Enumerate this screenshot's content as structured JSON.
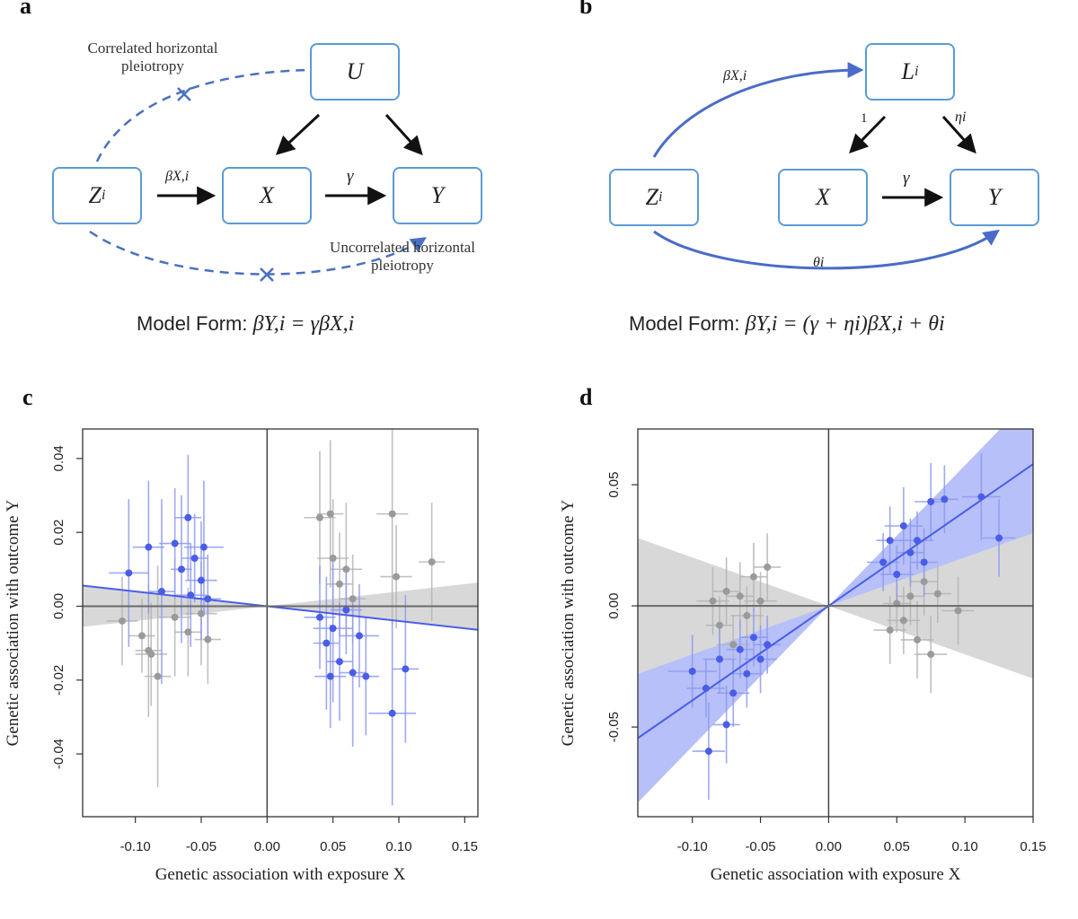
{
  "panels": {
    "a": {
      "letter": "a",
      "node_u": "U",
      "node_z": "Z",
      "node_z_sub": "i",
      "node_x": "X",
      "node_y": "Y",
      "edge_zx": "βX,i",
      "edge_xy": "γ",
      "correlated_label_1": "Correlated horizontal",
      "correlated_label_2": "pleiotropy",
      "uncorrelated_label_1": "Uncorrelated horizontal",
      "uncorrelated_label_2": "pleiotropy",
      "model_prefix": "Model Form: ",
      "model_eq": "βY,i = γβX,i"
    },
    "b": {
      "letter": "b",
      "node_l": "L",
      "node_l_sub": "i",
      "node_z": "Z",
      "node_z_sub": "i",
      "node_x": "X",
      "node_y": "Y",
      "edge_zl": "βX,i",
      "edge_lx": "1",
      "edge_ly": "ηi",
      "edge_xy": "γ",
      "edge_zy": "θi",
      "model_prefix": "Model Form: ",
      "model_eq": "βY,i = (γ + ηi)βX,i + θi"
    },
    "c": {
      "letter": "c"
    },
    "d": {
      "letter": "d"
    }
  },
  "colors": {
    "blue": "#4a5de8",
    "blue_light": "#8d9af0",
    "gray": "#9a9a9a",
    "node_border": "#5b9bd5",
    "dashed": "#4a70c0"
  },
  "chart_data": [
    {
      "type": "scatter",
      "panel": "c",
      "xlabel": "Genetic association with exposure X",
      "ylabel": "Genetic association with outcome Y",
      "xlim": [
        -0.14,
        0.16
      ],
      "ylim": [
        -0.057,
        0.048
      ],
      "xticks": [
        -0.1,
        -0.05,
        0.0,
        0.05,
        0.1,
        0.15
      ],
      "xtick_labels": [
        "-0.10",
        "-0.05",
        "0.00",
        "0.05",
        "0.10",
        "0.15"
      ],
      "yticks": [
        -0.04,
        -0.02,
        0.0,
        0.02,
        0.04
      ],
      "ytick_labels": [
        "-0.04",
        "-0.02",
        "0.00",
        "0.02",
        "0.04"
      ],
      "fit_lines": [
        {
          "color": "blue",
          "slope": -0.04
        },
        {
          "color": "gray",
          "slope": 0.0
        }
      ],
      "gray_band": {
        "center_slope": 0.0,
        "halfwidth_slope": 0.04
      },
      "series": [
        {
          "color": "blue",
          "points": [
            {
              "x": -0.105,
              "y": 0.009,
              "xe": 0.015,
              "ye": 0.02
            },
            {
              "x": -0.09,
              "y": 0.016,
              "xe": 0.012,
              "ye": 0.018
            },
            {
              "x": -0.08,
              "y": 0.004,
              "xe": 0.01,
              "ye": 0.025
            },
            {
              "x": -0.07,
              "y": 0.017,
              "xe": 0.012,
              "ye": 0.015
            },
            {
              "x": -0.065,
              "y": 0.01,
              "xe": 0.008,
              "ye": 0.02
            },
            {
              "x": -0.06,
              "y": 0.024,
              "xe": 0.01,
              "ye": 0.017
            },
            {
              "x": -0.058,
              "y": 0.003,
              "xe": 0.012,
              "ye": 0.014
            },
            {
              "x": -0.055,
              "y": 0.013,
              "xe": 0.01,
              "ye": 0.012
            },
            {
              "x": -0.05,
              "y": 0.007,
              "xe": 0.012,
              "ye": 0.016
            },
            {
              "x": -0.048,
              "y": 0.016,
              "xe": 0.015,
              "ye": 0.018
            },
            {
              "x": -0.045,
              "y": 0.002,
              "xe": 0.01,
              "ye": 0.012
            },
            {
              "x": 0.04,
              "y": -0.003,
              "xe": 0.012,
              "ye": 0.014
            },
            {
              "x": 0.045,
              "y": -0.01,
              "xe": 0.01,
              "ye": 0.018
            },
            {
              "x": 0.048,
              "y": -0.019,
              "xe": 0.012,
              "ye": 0.014
            },
            {
              "x": 0.05,
              "y": -0.006,
              "xe": 0.015,
              "ye": 0.02
            },
            {
              "x": 0.055,
              "y": -0.015,
              "xe": 0.01,
              "ye": 0.016
            },
            {
              "x": 0.06,
              "y": -0.001,
              "xe": 0.012,
              "ye": 0.012
            },
            {
              "x": 0.065,
              "y": -0.018,
              "xe": 0.01,
              "ye": 0.02
            },
            {
              "x": 0.07,
              "y": -0.008,
              "xe": 0.015,
              "ye": 0.014
            },
            {
              "x": 0.075,
              "y": -0.019,
              "xe": 0.01,
              "ye": 0.016
            },
            {
              "x": 0.095,
              "y": -0.029,
              "xe": 0.018,
              "ye": 0.025
            },
            {
              "x": 0.105,
              "y": -0.017,
              "xe": 0.01,
              "ye": 0.02
            }
          ]
        },
        {
          "color": "gray",
          "points": [
            {
              "x": -0.11,
              "y": -0.004,
              "xe": 0.012,
              "ye": 0.012
            },
            {
              "x": -0.095,
              "y": -0.008,
              "xe": 0.01,
              "ye": 0.01
            },
            {
              "x": -0.09,
              "y": -0.012,
              "xe": 0.01,
              "ye": 0.018
            },
            {
              "x": -0.088,
              "y": -0.013,
              "xe": 0.012,
              "ye": 0.014
            },
            {
              "x": -0.083,
              "y": -0.019,
              "xe": 0.01,
              "ye": 0.03
            },
            {
              "x": -0.07,
              "y": -0.003,
              "xe": 0.012,
              "ye": 0.016
            },
            {
              "x": -0.06,
              "y": -0.007,
              "xe": 0.01,
              "ye": 0.012
            },
            {
              "x": -0.05,
              "y": -0.002,
              "xe": 0.012,
              "ye": 0.014
            },
            {
              "x": -0.045,
              "y": -0.009,
              "xe": 0.01,
              "ye": 0.012
            },
            {
              "x": 0.04,
              "y": 0.024,
              "xe": 0.012,
              "ye": 0.018
            },
            {
              "x": 0.048,
              "y": 0.025,
              "xe": 0.01,
              "ye": 0.02
            },
            {
              "x": 0.05,
              "y": 0.013,
              "xe": 0.012,
              "ye": 0.016
            },
            {
              "x": 0.055,
              "y": 0.006,
              "xe": 0.01,
              "ye": 0.014
            },
            {
              "x": 0.06,
              "y": 0.01,
              "xe": 0.012,
              "ye": 0.018
            },
            {
              "x": 0.065,
              "y": 0.002,
              "xe": 0.01,
              "ye": 0.012
            },
            {
              "x": 0.095,
              "y": 0.025,
              "xe": 0.012,
              "ye": 0.03
            },
            {
              "x": 0.098,
              "y": 0.008,
              "xe": 0.012,
              "ye": 0.014
            },
            {
              "x": 0.125,
              "y": 0.012,
              "xe": 0.01,
              "ye": 0.016
            }
          ]
        }
      ]
    },
    {
      "type": "scatter",
      "panel": "d",
      "xlabel": "Genetic association with exposure X",
      "ylabel": "Genetic association with outcome Y",
      "xlim": [
        -0.14,
        0.15
      ],
      "ylim": [
        -0.087,
        0.073
      ],
      "xticks": [
        -0.1,
        -0.05,
        0.0,
        0.05,
        0.1,
        0.15
      ],
      "xtick_labels": [
        "-0.10",
        "-0.05",
        "0.00",
        "0.05",
        "0.10",
        "0.15"
      ],
      "yticks": [
        -0.05,
        0.0,
        0.05
      ],
      "ytick_labels": [
        "-0.05",
        "0.00",
        "0.05"
      ],
      "fit_lines": [
        {
          "color": "blue",
          "slope": 0.39
        },
        {
          "color": "gray",
          "slope": 0.0
        }
      ],
      "blue_band": {
        "center_slope": 0.39,
        "halfwidth_slope": 0.19
      },
      "gray_band": {
        "center_slope": 0.0,
        "halfwidth_slope": 0.2
      },
      "series": [
        {
          "color": "blue",
          "points": [
            {
              "x": -0.1,
              "y": -0.027,
              "xe": 0.018,
              "ye": 0.015
            },
            {
              "x": -0.09,
              "y": -0.034,
              "xe": 0.014,
              "ye": 0.012
            },
            {
              "x": -0.088,
              "y": -0.06,
              "xe": 0.012,
              "ye": 0.02
            },
            {
              "x": -0.08,
              "y": -0.022,
              "xe": 0.012,
              "ye": 0.014
            },
            {
              "x": -0.075,
              "y": -0.049,
              "xe": 0.01,
              "ye": 0.016
            },
            {
              "x": -0.07,
              "y": -0.036,
              "xe": 0.012,
              "ye": 0.014
            },
            {
              "x": -0.065,
              "y": -0.018,
              "xe": 0.01,
              "ye": 0.012
            },
            {
              "x": -0.06,
              "y": -0.028,
              "xe": 0.012,
              "ye": 0.014
            },
            {
              "x": -0.055,
              "y": -0.013,
              "xe": 0.01,
              "ye": 0.012
            },
            {
              "x": -0.05,
              "y": -0.022,
              "xe": 0.012,
              "ye": 0.014
            },
            {
              "x": -0.045,
              "y": -0.016,
              "xe": 0.01,
              "ye": 0.012
            },
            {
              "x": 0.04,
              "y": 0.018,
              "xe": 0.012,
              "ye": 0.012
            },
            {
              "x": 0.045,
              "y": 0.027,
              "xe": 0.01,
              "ye": 0.014
            },
            {
              "x": 0.05,
              "y": 0.013,
              "xe": 0.012,
              "ye": 0.012
            },
            {
              "x": 0.055,
              "y": 0.033,
              "xe": 0.014,
              "ye": 0.016
            },
            {
              "x": 0.06,
              "y": 0.022,
              "xe": 0.01,
              "ye": 0.014
            },
            {
              "x": 0.065,
              "y": 0.027,
              "xe": 0.012,
              "ye": 0.012
            },
            {
              "x": 0.07,
              "y": 0.018,
              "xe": 0.01,
              "ye": 0.014
            },
            {
              "x": 0.075,
              "y": 0.043,
              "xe": 0.012,
              "ye": 0.016
            },
            {
              "x": 0.085,
              "y": 0.044,
              "xe": 0.01,
              "ye": 0.014
            },
            {
              "x": 0.112,
              "y": 0.045,
              "xe": 0.014,
              "ye": 0.018
            },
            {
              "x": 0.125,
              "y": 0.028,
              "xe": 0.012,
              "ye": 0.016
            }
          ]
        },
        {
          "color": "gray",
          "points": [
            {
              "x": -0.085,
              "y": 0.002,
              "xe": 0.012,
              "ye": 0.014
            },
            {
              "x": -0.08,
              "y": -0.008,
              "xe": 0.01,
              "ye": 0.012
            },
            {
              "x": -0.075,
              "y": 0.006,
              "xe": 0.01,
              "ye": 0.014
            },
            {
              "x": -0.07,
              "y": -0.016,
              "xe": 0.012,
              "ye": 0.012
            },
            {
              "x": -0.065,
              "y": 0.004,
              "xe": 0.01,
              "ye": 0.014
            },
            {
              "x": -0.06,
              "y": -0.004,
              "xe": 0.012,
              "ye": 0.012
            },
            {
              "x": -0.055,
              "y": 0.012,
              "xe": 0.01,
              "ye": 0.014
            },
            {
              "x": -0.05,
              "y": 0.002,
              "xe": 0.012,
              "ye": 0.012
            },
            {
              "x": -0.045,
              "y": 0.016,
              "xe": 0.01,
              "ye": 0.014
            },
            {
              "x": 0.045,
              "y": -0.01,
              "xe": 0.012,
              "ye": 0.014
            },
            {
              "x": 0.05,
              "y": 0.001,
              "xe": 0.01,
              "ye": 0.012
            },
            {
              "x": 0.055,
              "y": -0.006,
              "xe": 0.012,
              "ye": 0.014
            },
            {
              "x": 0.06,
              "y": 0.004,
              "xe": 0.01,
              "ye": 0.012
            },
            {
              "x": 0.065,
              "y": -0.014,
              "xe": 0.012,
              "ye": 0.016
            },
            {
              "x": 0.07,
              "y": 0.01,
              "xe": 0.01,
              "ye": 0.014
            },
            {
              "x": 0.075,
              "y": -0.02,
              "xe": 0.012,
              "ye": 0.016
            },
            {
              "x": 0.08,
              "y": 0.005,
              "xe": 0.01,
              "ye": 0.012
            },
            {
              "x": 0.095,
              "y": -0.002,
              "xe": 0.012,
              "ye": 0.014
            }
          ]
        }
      ]
    }
  ]
}
